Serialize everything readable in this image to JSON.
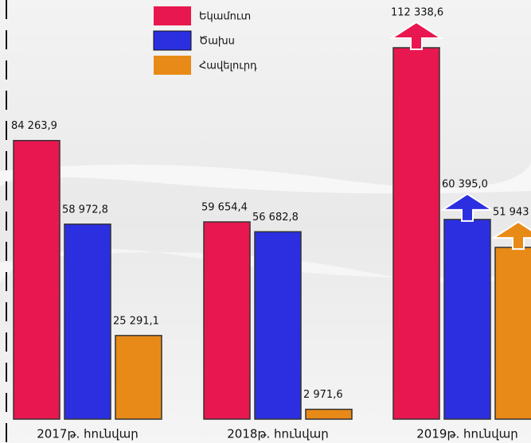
{
  "chart_data": {
    "type": "bar",
    "categories": [
      "2017թ. հունվար",
      "2018թ. հունվար",
      "2019թ. հունվար"
    ],
    "series": [
      {
        "name": "Եկամուտ",
        "color": "#e8174f",
        "values": [
          84263.9,
          59654.4,
          112338.6
        ],
        "value_labels": [
          "84 263,9",
          "59 654,4",
          "112 338,6"
        ]
      },
      {
        "name": "Ծախս",
        "color": "#2b2fe0",
        "values": [
          58972.8,
          56682.8,
          60395.0
        ],
        "value_labels": [
          "58 972,8",
          "56 682,8",
          "60 395,0"
        ]
      },
      {
        "name": "Հավելուրդ",
        "color": "#e88a17",
        "values": [
          25291.1,
          2971.6,
          51943
        ],
        "value_labels": [
          "25 291,1",
          "2 971,6",
          "51 943"
        ]
      }
    ]
  }
}
